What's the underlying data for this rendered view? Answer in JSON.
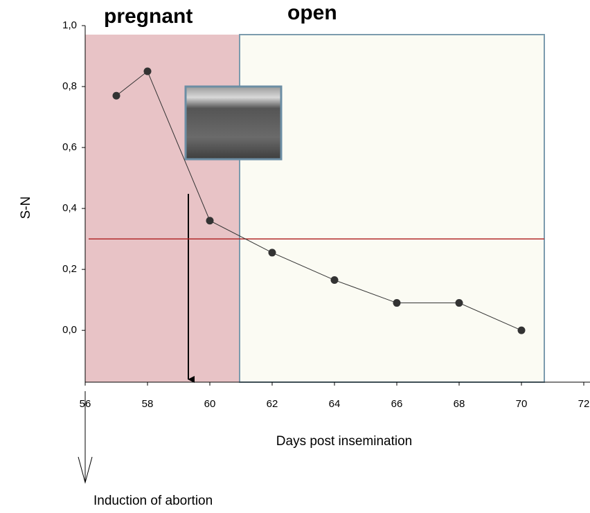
{
  "chart_data": {
    "type": "line",
    "x_label": "Days post insemination",
    "y_label": "S-N",
    "annotations": [
      "pregnant",
      "open",
      "Induction of abortion"
    ],
    "threshold": 0.3,
    "x": [
      57,
      58,
      60,
      62,
      64,
      66,
      68,
      70
    ],
    "series": [
      {
        "color": "#333333",
        "values": [
          0.77,
          0.85,
          0.36,
          0.255,
          0.165,
          0.09,
          0.09,
          0.0
        ]
      }
    ],
    "xlim": [
      56,
      72
    ],
    "xticks": [
      56,
      58,
      60,
      62,
      64,
      66,
      68,
      70,
      72
    ],
    "ylim": [
      -0.17,
      1.0
    ],
    "yticks": [
      {
        "value": 0,
        "label": "0,0"
      },
      {
        "value": 0.2,
        "label": "0,2"
      },
      {
        "value": 0.4,
        "label": "0,4"
      },
      {
        "value": 0.6,
        "label": "0,6"
      },
      {
        "value": 0.8,
        "label": "0,8"
      },
      {
        "value": 1.0,
        "label": "1,0"
      }
    ]
  }
}
